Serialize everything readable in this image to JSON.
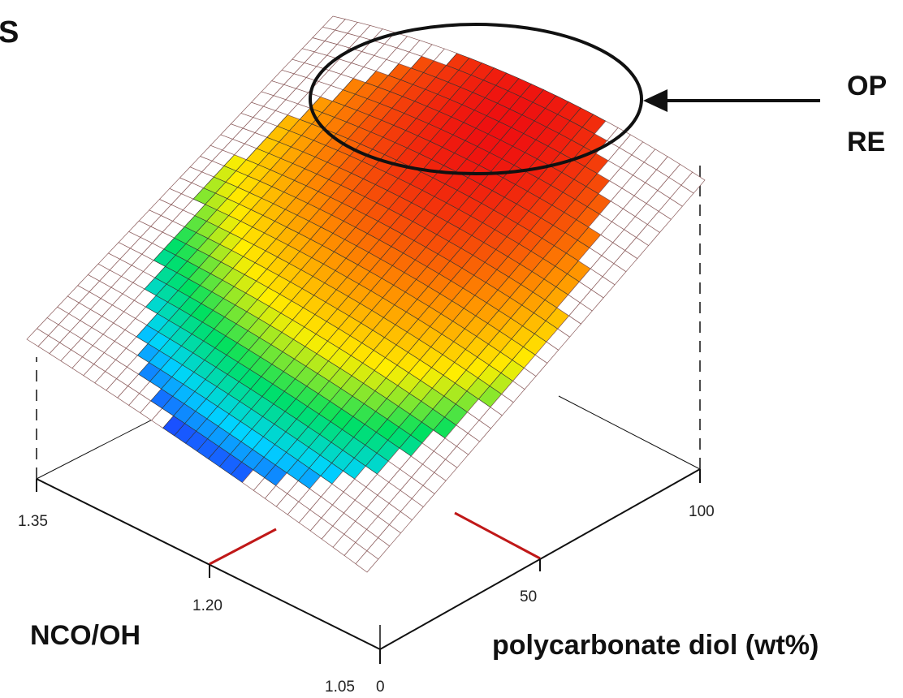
{
  "chart_data": {
    "type": "surface",
    "top_left_label": "S",
    "callout_text_lines": [
      "OP",
      "RE"
    ],
    "x_axis": {
      "title": "NCO/OH",
      "ticks": [
        "1.35",
        "1.20",
        "1.05"
      ],
      "range": [
        1.05,
        1.35
      ]
    },
    "y_axis": {
      "title": "polycarbonate diol (wt%)",
      "ticks": [
        "0",
        "50",
        "100"
      ],
      "range": [
        0,
        100
      ]
    },
    "optimum_marker": {
      "nco_oh": 1.2,
      "polycarbonate_diol_wt_pct": 50
    },
    "color_scale": [
      "#7a00d8",
      "#2030ff",
      "#00d4ff",
      "#00e060",
      "#ffee00",
      "#ff8c00",
      "#ee1010"
    ],
    "grid": "mesh",
    "highlight_region": "top (red, maximum response)"
  }
}
